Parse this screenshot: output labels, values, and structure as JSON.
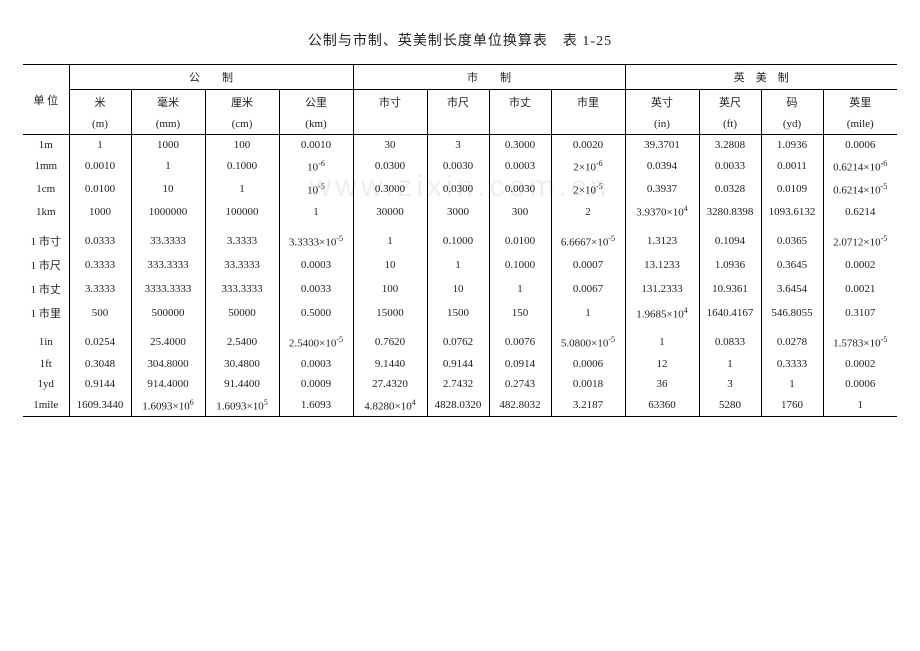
{
  "title": "公制与市制、英美制长度单位换算表　表 1-25",
  "watermark": "www.zixin.com.cn",
  "background_color": "#ffffff",
  "text_color": "#222222",
  "font_size_body": 11,
  "font_size_title": 14,
  "rule_thick": 1.5,
  "rule_thin": 1.0,
  "unit_header": "单 位",
  "groups": [
    {
      "label": "公　　制",
      "span": 4
    },
    {
      "label": "市　　制",
      "span": 4
    },
    {
      "label": "英　美　制",
      "span": 4
    }
  ],
  "cols": [
    {
      "top": "米",
      "sub": "(m)"
    },
    {
      "top": "毫米",
      "sub": "(mm)"
    },
    {
      "top": "厘米",
      "sub": "(cm)"
    },
    {
      "top": "公里",
      "sub": "(km)"
    },
    {
      "top": "市寸",
      "sub": ""
    },
    {
      "top": "市尺",
      "sub": ""
    },
    {
      "top": "市丈",
      "sub": ""
    },
    {
      "top": "市里",
      "sub": ""
    },
    {
      "top": "英寸",
      "sub": "(in)"
    },
    {
      "top": "英尺",
      "sub": "(ft)"
    },
    {
      "top": "码",
      "sub": "(yd)"
    },
    {
      "top": "英里",
      "sub": "(mile)"
    }
  ],
  "blocks": [
    {
      "rows": [
        {
          "u": "1m",
          "c": [
            "1",
            "1000",
            "100",
            "0.0010",
            "30",
            "3",
            "0.3000",
            "0.0020",
            "39.3701",
            "3.2808",
            "1.0936",
            "0.0006"
          ]
        },
        {
          "u": "1mm",
          "c": [
            "0.0010",
            "1",
            "0.1000",
            "10<sup>-6</sup>",
            "0.0300",
            "0.0030",
            "0.0003",
            "2×10<sup>-6</sup>",
            "0.0394",
            "0.0033",
            "0.0011",
            "0.6214×10<sup>-6</sup>"
          ]
        },
        {
          "u": "1cm",
          "c": [
            "0.0100",
            "10",
            "1",
            "10<sup>-5</sup>",
            "0.3000",
            "0.0300",
            "0.0030",
            "2×10<sup>-5</sup>",
            "0.3937",
            "0.0328",
            "0.0109",
            "0.6214×10<sup>-5</sup>"
          ]
        },
        {
          "u": "1km",
          "c": [
            "1000",
            "1000000",
            "100000",
            "1",
            "30000",
            "3000",
            "300",
            "2",
            "3.9370×10<sup>4</sup>",
            "3280.8398",
            "1093.6132",
            "0.6214"
          ]
        }
      ]
    },
    {
      "rows": [
        {
          "u": "1 市寸",
          "c": [
            "0.0333",
            "33.3333",
            "3.3333",
            "3.3333×10<sup>-5</sup>",
            "1",
            "0.1000",
            "0.0100",
            "6.6667×10<sup>-5</sup>",
            "1.3123",
            "0.1094",
            "0.0365",
            "2.0712×10<sup>-5</sup>"
          ]
        },
        {
          "u": "1 市尺",
          "c": [
            "0.3333",
            "333.3333",
            "33.3333",
            "0.0003",
            "10",
            "1",
            "0.1000",
            "0.0007",
            "13.1233",
            "1.0936",
            "0.3645",
            "0.0002"
          ]
        },
        {
          "u": "1 市丈",
          "c": [
            "3.3333",
            "3333.3333",
            "333.3333",
            "0.0033",
            "100",
            "10",
            "1",
            "0.0067",
            "131.2333",
            "10.9361",
            "3.6454",
            "0.0021"
          ]
        },
        {
          "u": "1 市里",
          "c": [
            "500",
            "500000",
            "50000",
            "0.5000",
            "15000",
            "1500",
            "150",
            "1",
            "1.9685×10<sup>4</sup>",
            "1640.4167",
            "546.8055",
            "0.3107"
          ]
        }
      ]
    },
    {
      "rows": [
        {
          "u": "1in",
          "c": [
            "0.0254",
            "25.4000",
            "2.5400",
            "2.5400×10<sup>-5</sup>",
            "0.7620",
            "0.0762",
            "0.0076",
            "5.0800×10<sup>-5</sup>",
            "1",
            "0.0833",
            "0.0278",
            "1.5783×10<sup>-5</sup>"
          ]
        },
        {
          "u": "1ft",
          "c": [
            "0.3048",
            "304.8000",
            "30.4800",
            "0.0003",
            "9.1440",
            "0.9144",
            "0.0914",
            "0.0006",
            "12",
            "1",
            "0.3333",
            "0.0002"
          ]
        },
        {
          "u": "1yd",
          "c": [
            "0.9144",
            "914.4000",
            "91.4400",
            "0.0009",
            "27.4320",
            "2.7432",
            "0.2743",
            "0.0018",
            "36",
            "3",
            "1",
            "0.0006"
          ]
        },
        {
          "u": "1mile",
          "c": [
            "1609.3440",
            "1.6093×10<sup>6</sup>",
            "1.6093×10<sup>5</sup>",
            "1.6093",
            "4.8280×10<sup>4</sup>",
            "4828.0320",
            "482.8032",
            "3.2187",
            "63360",
            "5280",
            "1760",
            "1"
          ]
        }
      ]
    }
  ]
}
